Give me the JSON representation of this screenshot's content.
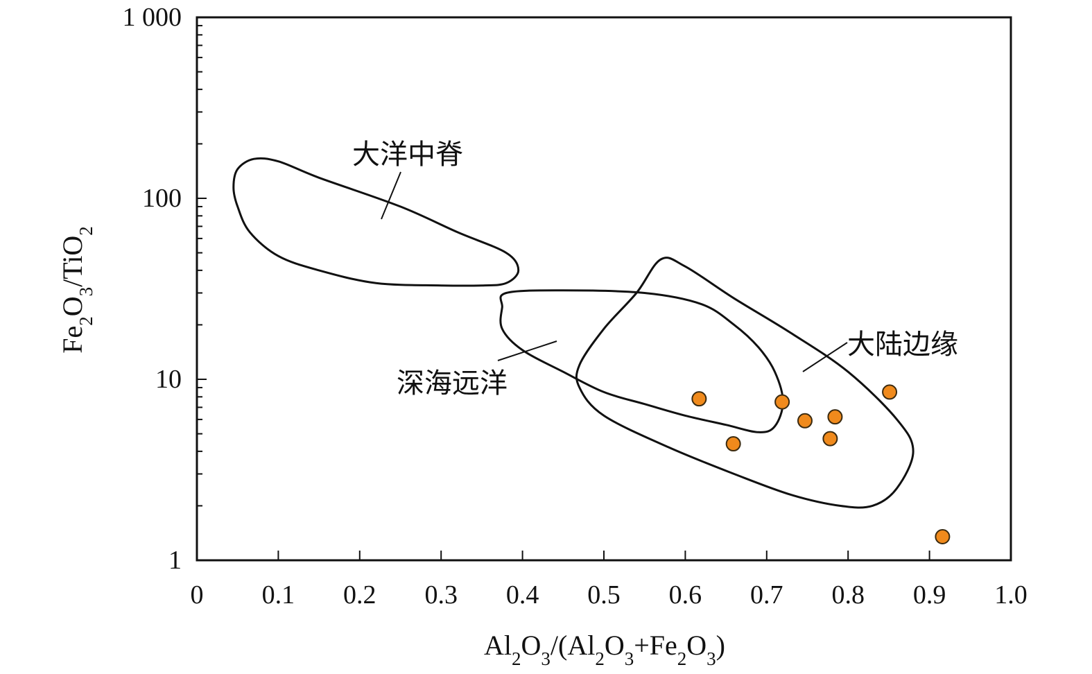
{
  "chart_data": {
    "type": "scatter",
    "title": "",
    "xlabel": "Al2O3/(Al2O3+Fe2O3)",
    "ylabel": "Fe2O3/TiO2",
    "xlim": [
      0,
      1.0
    ],
    "ylim": [
      1,
      1000
    ],
    "yscale": "log",
    "x_ticks": [
      "0",
      "0.1",
      "0.2",
      "0.3",
      "0.4",
      "0.5",
      "0.6",
      "0.7",
      "0.8",
      "0.9",
      "1.0"
    ],
    "y_ticks": [
      "1",
      "10",
      "100",
      "1 000"
    ],
    "grid": false,
    "legend": "none",
    "point_color": "#f08a1c",
    "series": [
      {
        "points": [
          {
            "x": 0.617,
            "y": 7.8
          },
          {
            "x": 0.659,
            "y": 4.4
          },
          {
            "x": 0.719,
            "y": 7.5
          },
          {
            "x": 0.747,
            "y": 5.9
          },
          {
            "x": 0.778,
            "y": 4.7
          },
          {
            "x": 0.784,
            "y": 6.2
          },
          {
            "x": 0.851,
            "y": 8.5
          },
          {
            "x": 0.916,
            "y": 1.35
          }
        ]
      }
    ],
    "fields": [
      {
        "label": "大洋中脊",
        "outline": [
          [
            0.07,
            165
          ],
          [
            0.1,
            160
          ],
          [
            0.15,
            130
          ],
          [
            0.25,
            90
          ],
          [
            0.32,
            65
          ],
          [
            0.38,
            50
          ],
          [
            0.395,
            40
          ],
          [
            0.38,
            34
          ],
          [
            0.35,
            33
          ],
          [
            0.3,
            33
          ],
          [
            0.22,
            34
          ],
          [
            0.15,
            40
          ],
          [
            0.1,
            48
          ],
          [
            0.065,
            65
          ],
          [
            0.05,
            90
          ],
          [
            0.045,
            115
          ],
          [
            0.05,
            145
          ]
        ]
      },
      {
        "label": "深海远洋",
        "outline": [
          [
            0.38,
            30
          ],
          [
            0.45,
            31
          ],
          [
            0.55,
            30
          ],
          [
            0.62,
            26
          ],
          [
            0.66,
            20
          ],
          [
            0.69,
            15
          ],
          [
            0.71,
            11
          ],
          [
            0.72,
            7.5
          ],
          [
            0.71,
            5.5
          ],
          [
            0.69,
            5.1
          ],
          [
            0.65,
            5.6
          ],
          [
            0.6,
            6.3
          ],
          [
            0.55,
            7.3
          ],
          [
            0.5,
            8.5
          ],
          [
            0.45,
            11
          ],
          [
            0.4,
            14.5
          ],
          [
            0.375,
            19
          ],
          [
            0.375,
            25
          ]
        ]
      },
      {
        "label": "大陆边缘",
        "outline": [
          [
            0.57,
            46
          ],
          [
            0.6,
            42
          ],
          [
            0.66,
            28
          ],
          [
            0.73,
            18
          ],
          [
            0.8,
            11
          ],
          [
            0.86,
            6
          ],
          [
            0.88,
            4
          ],
          [
            0.86,
            2.5
          ],
          [
            0.83,
            2.0
          ],
          [
            0.79,
            2.0
          ],
          [
            0.73,
            2.3
          ],
          [
            0.66,
            3.0
          ],
          [
            0.58,
            4.2
          ],
          [
            0.5,
            6.3
          ],
          [
            0.47,
            9.0
          ],
          [
            0.47,
            12
          ],
          [
            0.5,
            19
          ],
          [
            0.54,
            30
          ]
        ]
      }
    ]
  }
}
